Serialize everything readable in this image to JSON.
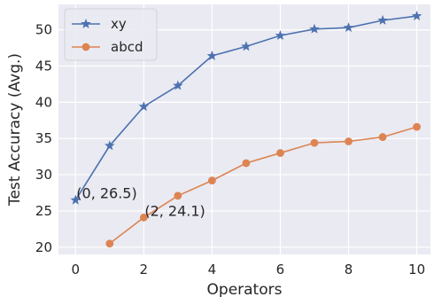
{
  "chart_data": {
    "type": "line",
    "title": "",
    "xlabel": "Operators",
    "ylabel": "Test Accuracy (Avg.)",
    "xlim": [
      -0.5,
      10.4
    ],
    "ylim": [
      19,
      53.5
    ],
    "xticks": [
      0,
      2,
      4,
      6,
      8,
      10
    ],
    "yticks": [
      20,
      25,
      30,
      35,
      40,
      45,
      50
    ],
    "grid": true,
    "background": "#eaeaf2",
    "legend_position": "top-left",
    "series": [
      {
        "name": "xy",
        "color": "#4c72b0",
        "marker": "star",
        "x": [
          0,
          1,
          2,
          3,
          4,
          5,
          6,
          7,
          8,
          9,
          10
        ],
        "values": [
          26.5,
          34.0,
          39.4,
          42.3,
          46.4,
          47.7,
          49.2,
          50.1,
          50.3,
          51.3,
          51.9
        ]
      },
      {
        "name": "abcd",
        "color": "#dd8452",
        "marker": "circle",
        "x": [
          1,
          2,
          3,
          4,
          5,
          6,
          7,
          8,
          9,
          10
        ],
        "values": [
          20.5,
          24.1,
          27.1,
          29.2,
          31.6,
          33.0,
          34.4,
          34.6,
          35.2,
          36.6
        ]
      }
    ],
    "annotations": [
      {
        "x": 0,
        "y": 26.5,
        "text": "(0, 26.5)"
      },
      {
        "x": 2,
        "y": 24.1,
        "text": "(2, 24.1)"
      }
    ]
  }
}
